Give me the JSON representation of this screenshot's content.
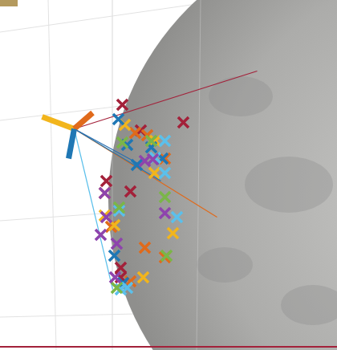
{
  "chart_data": {
    "type": "scatter",
    "xlim": [
      0,
      420
    ],
    "ylim": [
      436,
      0
    ],
    "tick_labels": false,
    "series": [
      {
        "type": "line",
        "color": "#a3213a",
        "line_style": "solid",
        "x": [
          92,
          320
        ],
        "y": [
          160,
          88
        ]
      },
      {
        "type": "line",
        "color": "#e06a1b",
        "line_style": "solid",
        "x": [
          92,
          270
        ],
        "y": [
          160,
          270
        ]
      },
      {
        "type": "line",
        "color": "#1f77b4",
        "line_style": "solid",
        "x": [
          92,
          200
        ],
        "y": [
          160,
          225
        ]
      },
      {
        "type": "line",
        "color": "#2a6fb0",
        "line_style": "solid",
        "x": [
          92,
          175
        ],
        "y": [
          160,
          205
        ]
      },
      {
        "type": "line",
        "color": "#5bc0eb",
        "line_style": "solid",
        "x": [
          92,
          140
        ],
        "y": [
          160,
          360
        ]
      },
      {
        "type": "scatter",
        "color": "#a3213a",
        "marker": "x",
        "x": [
          152,
          228,
          175,
          132,
          162,
          150,
          150
        ],
        "y": [
          130,
          152,
          162,
          225,
          238,
          333,
          345
        ]
      },
      {
        "type": "scatter",
        "color": "#e06a1b",
        "marker": "x",
        "x": [
          168,
          183,
          205,
          130,
          138,
          180,
          205,
          162
        ],
        "y": [
          165,
          168,
          197,
          240,
          282,
          308,
          320,
          350
        ]
      },
      {
        "type": "scatter",
        "color": "#f2b51c",
        "marker": "x",
        "x": [
          155,
          193,
          192,
          130,
          142,
          215,
          178
        ],
        "y": [
          155,
          175,
          215,
          268,
          280,
          290,
          345
        ]
      },
      {
        "type": "scatter",
        "color": "#1f77b4",
        "marker": "x",
        "x": [
          147,
          158,
          188,
          170,
          202,
          142,
          153
        ],
        "y": [
          148,
          180,
          183,
          205,
          197,
          318,
          352
        ]
      },
      {
        "type": "scatter",
        "color": "#5bc0eb",
        "marker": "x",
        "x": [
          205,
          193,
          205,
          220,
          148,
          150,
          158
        ],
        "y": [
          175,
          196,
          215,
          270,
          262,
          360,
          358
        ]
      },
      {
        "type": "scatter",
        "color": "#7ab648",
        "marker": "x",
        "x": [
          188,
          152,
          205,
          148,
          207,
          145
        ],
        "y": [
          175,
          177,
          245,
          258,
          318,
          358
        ]
      },
      {
        "type": "scatter",
        "color": "#8e44ad",
        "marker": "x",
        "x": [
          190,
          180,
          130,
          205,
          125,
          143,
          145,
          132
        ],
        "y": [
          198,
          200,
          240,
          265,
          292,
          345,
          303,
          270
        ]
      },
      {
        "type": "line",
        "color": "#f2b51c",
        "line_style": "thick",
        "x": [
          52,
          92
        ],
        "y": [
          145,
          160
        ]
      },
      {
        "type": "line",
        "color": "#e06a1b",
        "line_style": "thick",
        "x": [
          92,
          115
        ],
        "y": [
          160,
          140
        ]
      },
      {
        "type": "line",
        "color": "#1f77b4",
        "line_style": "thick",
        "x": [
          92,
          85
        ],
        "y": [
          160,
          197
        ]
      }
    ]
  }
}
